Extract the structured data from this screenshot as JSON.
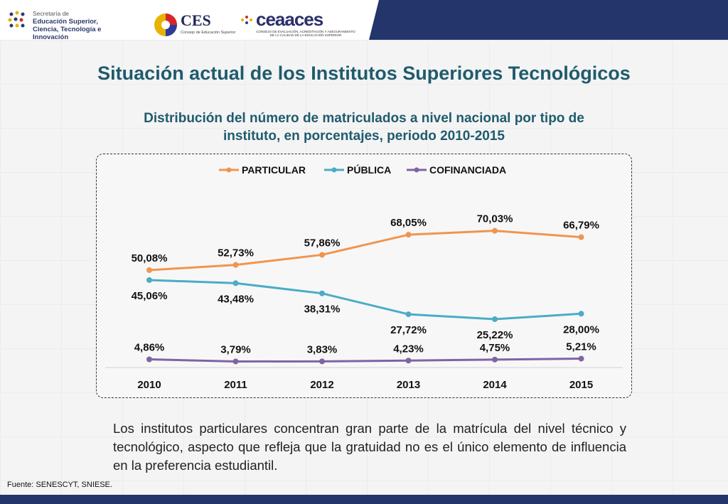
{
  "header": {
    "senescyt": {
      "line1": "Secretaría de",
      "line2": "Educación Superior,",
      "line3": "Ciencia, Tecnología e Innovación"
    },
    "ces": {
      "name": "CES",
      "sub": "Consejo de Educación Superior"
    },
    "ceaaces": {
      "name": "ceaaces",
      "sub": "CONSEJO DE EVALUACIÓN, ACREDITACIÓN Y ASEGURAMIENTO DE LA CALIDAD DE LA EDUCACIÓN SUPERIOR"
    },
    "band_color": "#23356b"
  },
  "title": "Situación actual de los Institutos Superiores Tecnológicos",
  "subtitle_line1": "Distribución del número de matriculados a nivel nacional por tipo de",
  "subtitle_line2": "instituto, en porcentajes, periodo 2010-2015",
  "chart_data": {
    "type": "line",
    "x": [
      "2010",
      "2011",
      "2012",
      "2013",
      "2014",
      "2015"
    ],
    "ylim": [
      0,
      80
    ],
    "grid": false,
    "legend_position": "top",
    "series": [
      {
        "name": "PARTICULAR",
        "color": "#f0954e",
        "values": [
          50.08,
          52.73,
          57.86,
          68.05,
          70.03,
          66.79
        ],
        "labels": [
          "50,08%",
          "52,73%",
          "57,86%",
          "68,05%",
          "70,03%",
          "66,79%"
        ],
        "label_side": "above"
      },
      {
        "name": "PÚBLICA",
        "color": "#4bacc6",
        "values": [
          45.06,
          43.48,
          38.31,
          27.72,
          25.22,
          28.0
        ],
        "labels": [
          "45,06%",
          "43,48%",
          "38,31%",
          "27,72%",
          "25,22%",
          "28,00%"
        ],
        "label_side": "below"
      },
      {
        "name": "COFINANCIADA",
        "color": "#8064a2",
        "values": [
          4.86,
          3.79,
          3.83,
          4.23,
          4.75,
          5.21
        ],
        "labels": [
          "4,86%",
          "3,79%",
          "3,83%",
          "4,23%",
          "4,75%",
          "5,21%"
        ],
        "label_side": "above"
      }
    ]
  },
  "body_text": "Los institutos particulares concentran gran parte de la matrícula del nivel técnico y tecnológico, aspecto que refleja que la gratuidad no es el único elemento de influencia en la preferencia estudiantil.",
  "source": "Fuente: SENESCYT, SNIESE."
}
